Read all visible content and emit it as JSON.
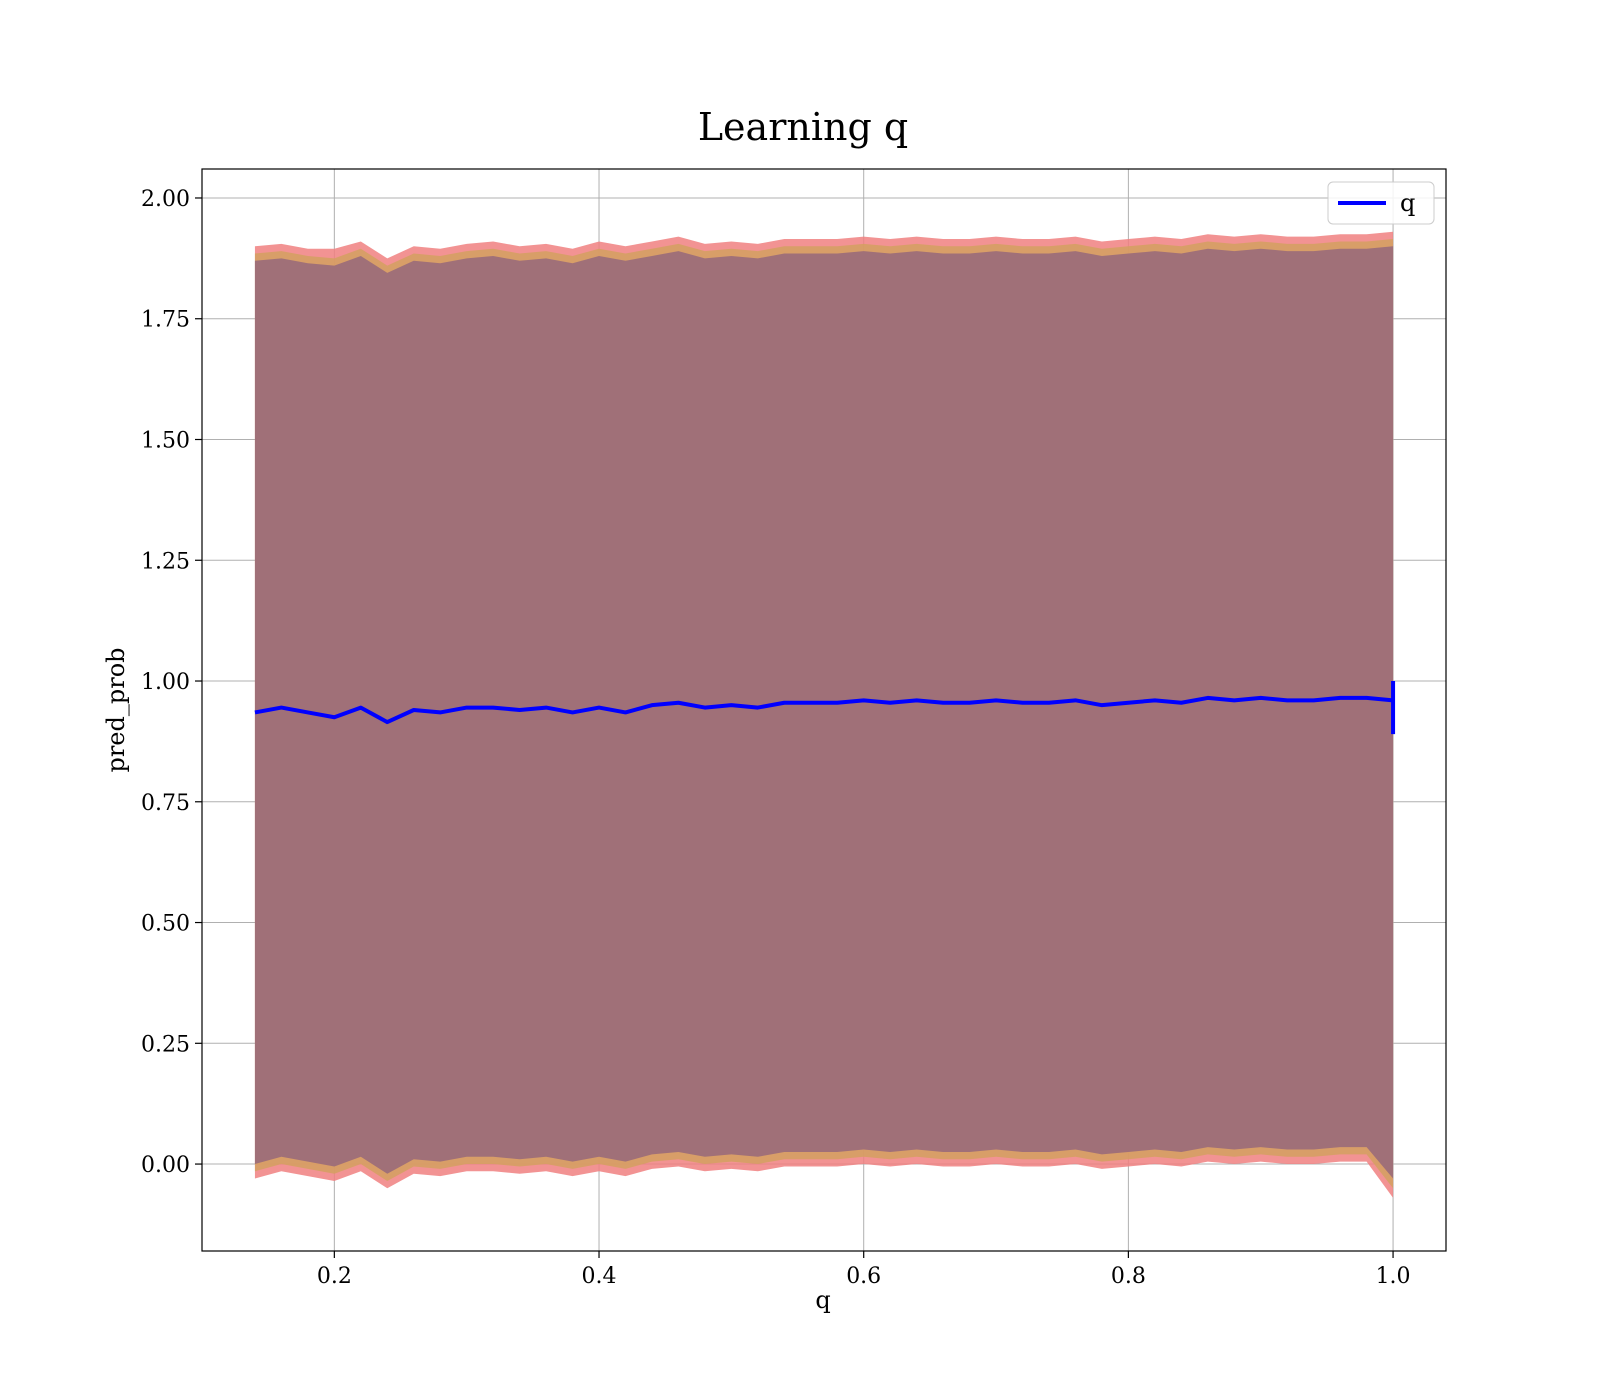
{
  "chart_data": {
    "type": "line",
    "title": "Learning q",
    "xlabel": "q",
    "ylabel": "pred_prob",
    "xlim": [
      0.1,
      1.04
    ],
    "ylim": [
      -0.18,
      2.06
    ],
    "xticks": [
      0.2,
      0.4,
      0.6,
      0.8,
      1.0
    ],
    "xtick_labels": [
      "0.2",
      "0.4",
      "0.6",
      "0.8",
      "1.0"
    ],
    "yticks": [
      0.0,
      0.25,
      0.5,
      0.75,
      1.0,
      1.25,
      1.5,
      1.75,
      2.0
    ],
    "ytick_labels": [
      "0.00",
      "0.25",
      "0.50",
      "0.75",
      "1.00",
      "1.25",
      "1.50",
      "1.75",
      "2.00"
    ],
    "grid": true,
    "legend": {
      "position": "top-right",
      "entries": [
        "q"
      ]
    },
    "colors": {
      "line": "#0000ff",
      "band_outer": "#f08080",
      "band_middle": "#d4a060",
      "band_inner": "#a07078"
    },
    "x": [
      0.14,
      0.16,
      0.18,
      0.2,
      0.22,
      0.24,
      0.26,
      0.28,
      0.3,
      0.32,
      0.34,
      0.36,
      0.38,
      0.4,
      0.42,
      0.44,
      0.46,
      0.48,
      0.5,
      0.52,
      0.54,
      0.56,
      0.58,
      0.6,
      0.62,
      0.64,
      0.66,
      0.68,
      0.7,
      0.72,
      0.74,
      0.76,
      0.78,
      0.8,
      0.82,
      0.84,
      0.86,
      0.88,
      0.9,
      0.92,
      0.94,
      0.96,
      0.98,
      1.0
    ],
    "series": [
      {
        "name": "q",
        "values": [
          0.935,
          0.945,
          0.935,
          0.925,
          0.945,
          0.915,
          0.94,
          0.935,
          0.945,
          0.945,
          0.94,
          0.945,
          0.935,
          0.945,
          0.935,
          0.95,
          0.955,
          0.945,
          0.95,
          0.945,
          0.955,
          0.955,
          0.955,
          0.96,
          0.955,
          0.96,
          0.955,
          0.955,
          0.96,
          0.955,
          0.955,
          0.96,
          0.95,
          0.955,
          0.96,
          0.955,
          0.965,
          0.96,
          0.965,
          0.96,
          0.96,
          0.965,
          0.965,
          0.96
        ]
      }
    ],
    "bands": [
      {
        "name": "outer",
        "upper": [
          1.9,
          1.905,
          1.895,
          1.895,
          1.91,
          1.875,
          1.9,
          1.895,
          1.905,
          1.91,
          1.9,
          1.905,
          1.895,
          1.91,
          1.9,
          1.91,
          1.92,
          1.905,
          1.91,
          1.905,
          1.915,
          1.915,
          1.915,
          1.92,
          1.915,
          1.92,
          1.915,
          1.915,
          1.92,
          1.915,
          1.915,
          1.92,
          1.91,
          1.915,
          1.92,
          1.915,
          1.925,
          1.92,
          1.925,
          1.92,
          1.92,
          1.925,
          1.925,
          1.93
        ],
        "lower": [
          -0.03,
          -0.015,
          -0.025,
          -0.035,
          -0.015,
          -0.05,
          -0.02,
          -0.025,
          -0.015,
          -0.015,
          -0.02,
          -0.015,
          -0.025,
          -0.015,
          -0.025,
          -0.01,
          -0.005,
          -0.015,
          -0.01,
          -0.015,
          -0.005,
          -0.005,
          -0.005,
          0.0,
          -0.005,
          0.0,
          -0.005,
          -0.005,
          0.0,
          -0.005,
          -0.005,
          0.0,
          -0.01,
          -0.005,
          0.0,
          -0.005,
          0.005,
          0.0,
          0.005,
          0.0,
          0.0,
          0.005,
          0.005,
          -0.07
        ]
      },
      {
        "name": "middle",
        "upper": [
          1.885,
          1.89,
          1.88,
          1.875,
          1.895,
          1.86,
          1.885,
          1.88,
          1.89,
          1.895,
          1.885,
          1.89,
          1.88,
          1.895,
          1.885,
          1.895,
          1.905,
          1.89,
          1.895,
          1.89,
          1.9,
          1.9,
          1.9,
          1.905,
          1.9,
          1.905,
          1.9,
          1.9,
          1.905,
          1.9,
          1.9,
          1.905,
          1.895,
          1.9,
          1.905,
          1.9,
          1.91,
          1.905,
          1.91,
          1.905,
          1.905,
          1.91,
          1.91,
          1.915
        ],
        "lower": [
          -0.015,
          0.0,
          -0.01,
          -0.02,
          0.0,
          -0.035,
          -0.005,
          -0.01,
          0.0,
          0.0,
          -0.005,
          0.0,
          -0.01,
          0.0,
          -0.01,
          0.005,
          0.01,
          0.0,
          0.005,
          0.0,
          0.01,
          0.01,
          0.01,
          0.015,
          0.01,
          0.015,
          0.01,
          0.01,
          0.015,
          0.01,
          0.01,
          0.015,
          0.005,
          0.01,
          0.015,
          0.01,
          0.02,
          0.015,
          0.02,
          0.015,
          0.015,
          0.02,
          0.02,
          -0.05
        ]
      },
      {
        "name": "inner",
        "upper": [
          1.87,
          1.875,
          1.865,
          1.86,
          1.88,
          1.845,
          1.87,
          1.865,
          1.875,
          1.88,
          1.87,
          1.875,
          1.865,
          1.88,
          1.87,
          1.88,
          1.89,
          1.875,
          1.88,
          1.875,
          1.885,
          1.885,
          1.885,
          1.89,
          1.885,
          1.89,
          1.885,
          1.885,
          1.89,
          1.885,
          1.885,
          1.89,
          1.88,
          1.885,
          1.89,
          1.885,
          1.895,
          1.89,
          1.895,
          1.89,
          1.89,
          1.895,
          1.895,
          1.9
        ],
        "lower": [
          0.0,
          0.015,
          0.005,
          -0.005,
          0.015,
          -0.02,
          0.01,
          0.005,
          0.015,
          0.015,
          0.01,
          0.015,
          0.005,
          0.015,
          0.005,
          0.02,
          0.025,
          0.015,
          0.02,
          0.015,
          0.025,
          0.025,
          0.025,
          0.03,
          0.025,
          0.03,
          0.025,
          0.025,
          0.03,
          0.025,
          0.025,
          0.03,
          0.02,
          0.025,
          0.03,
          0.025,
          0.035,
          0.03,
          0.035,
          0.03,
          0.03,
          0.035,
          0.035,
          -0.03
        ]
      }
    ],
    "final_spike": {
      "x": 1.0,
      "y_min": 0.89,
      "y_max": 1.0
    }
  }
}
